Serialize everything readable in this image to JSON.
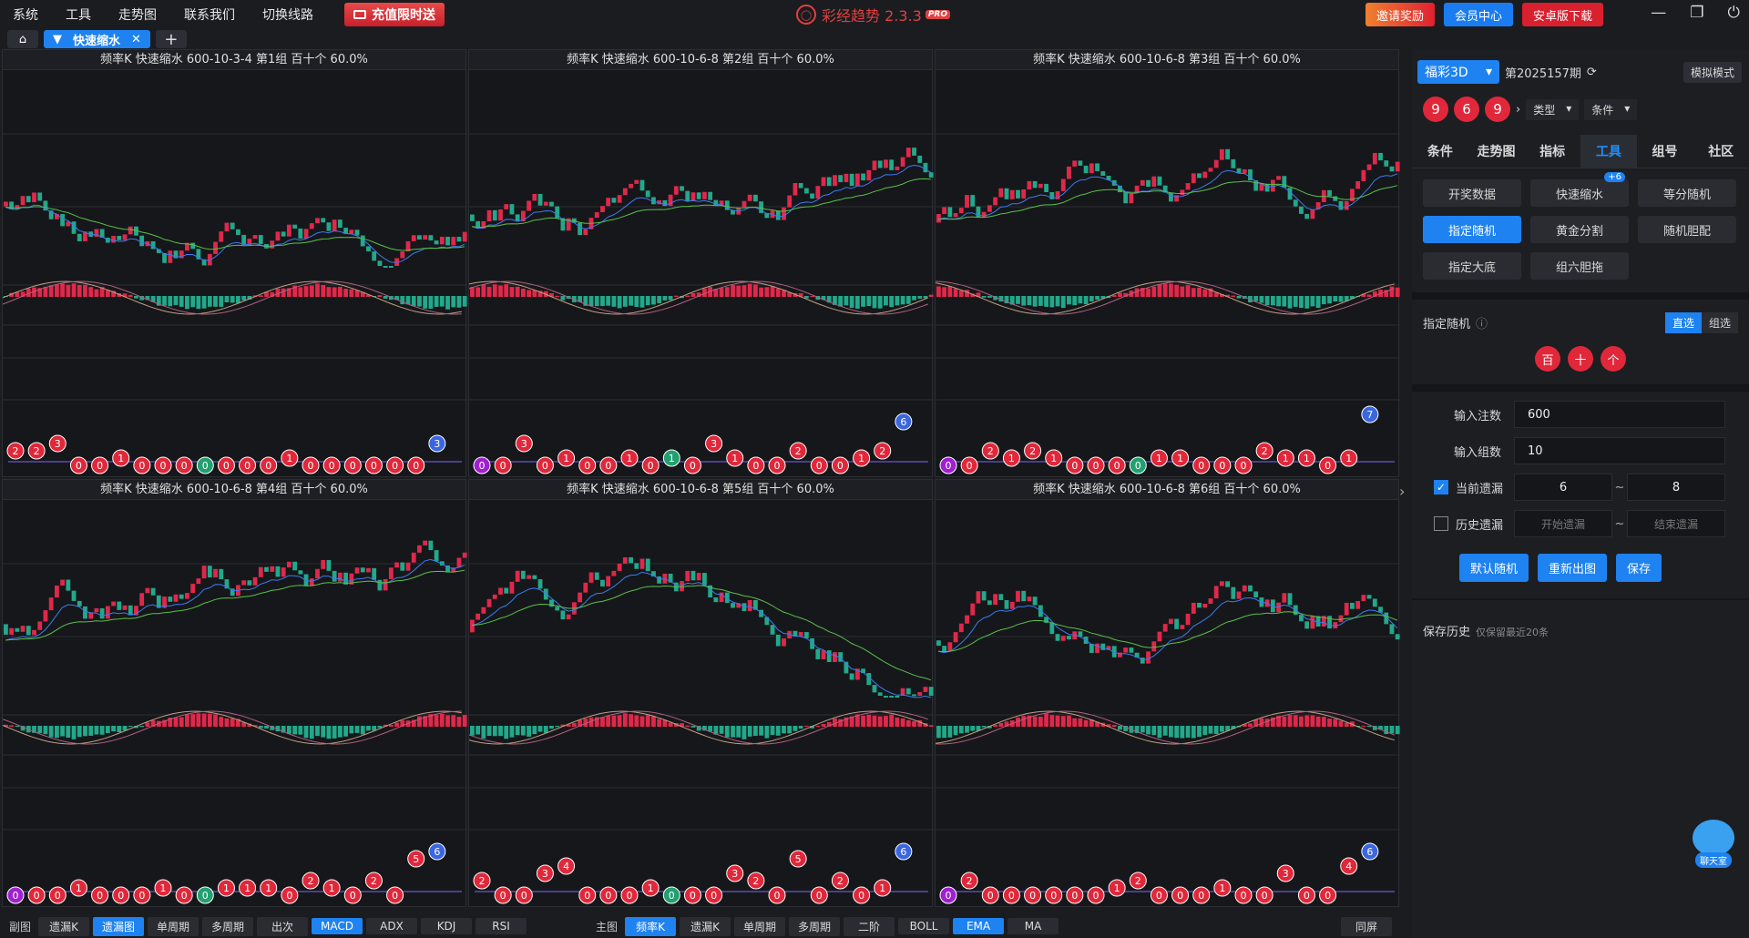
{
  "menu": [
    "系统",
    "工具",
    "走势图",
    "联系我们",
    "切换线路"
  ],
  "promo": "充值限时送",
  "app": {
    "name": "彩经趋势 2.3.3",
    "badge": "PRO"
  },
  "top_buttons": {
    "invite": "邀请奖励",
    "vip": "会员中心",
    "android": "安卓版下载"
  },
  "tab": {
    "label": "快速缩水"
  },
  "panels": [
    {
      "title": "频率K  快速缩水  600-10-3-4 第1组  百十个  60.0%"
    },
    {
      "title": "频率K  快速缩水  600-10-6-8 第2组  百十个  60.0%"
    },
    {
      "title": "频率K  快速缩水  600-10-6-8 第3组  百十个  60.0%"
    },
    {
      "title": "频率K  快速缩水  600-10-6-8 第4组  百十个  60.0%"
    },
    {
      "title": "频率K  快速缩水  600-10-6-8 第5组  百十个  60.0%"
    },
    {
      "title": "频率K  快速缩水  600-10-6-8 第6组  百十个  60.0%"
    }
  ],
  "miss_balls": [
    [
      "2",
      "2",
      "3",
      "0",
      "0",
      "1",
      "0",
      "0",
      "0",
      "0",
      "0",
      "0",
      "0",
      "1",
      "0",
      "0",
      "0",
      "0",
      "0",
      "0",
      "3"
    ],
    [
      "0",
      "0",
      "3",
      "0",
      "1",
      "0",
      "0",
      "1",
      "0",
      "1",
      "0",
      "3",
      "1",
      "0",
      "0",
      "2",
      "0",
      "0",
      "1",
      "2",
      "6"
    ],
    [
      "0",
      "0",
      "2",
      "1",
      "2",
      "1",
      "0",
      "0",
      "0",
      "0",
      "1",
      "1",
      "0",
      "0",
      "0",
      "2",
      "1",
      "1",
      "0",
      "1",
      "7"
    ],
    [
      "0",
      "0",
      "0",
      "1",
      "0",
      "0",
      "0",
      "1",
      "0",
      "0",
      "1",
      "1",
      "1",
      "0",
      "2",
      "1",
      "0",
      "2",
      "0",
      "5",
      "6"
    ],
    [
      "2",
      "0",
      "0",
      "3",
      "4",
      "0",
      "0",
      "0",
      "1",
      "0",
      "0",
      "0",
      "3",
      "2",
      "0",
      "5",
      "0",
      "2",
      "0",
      "1",
      "6"
    ],
    [
      "0",
      "2",
      "0",
      "0",
      "0",
      "0",
      "0",
      "0",
      "1",
      "2",
      "0",
      "0",
      "0",
      "1",
      "0",
      "0",
      "3",
      "0",
      "0",
      "4",
      "6"
    ]
  ],
  "bottom": {
    "sub_label": "副图",
    "sub": [
      "遗漏K",
      "遗漏图",
      "单周期",
      "多周期",
      "出次",
      "MACD",
      "ADX",
      "KDJ",
      "RSI"
    ],
    "main_label": "主图",
    "main": [
      "频率K",
      "遗漏K",
      "单周期",
      "多周期",
      "二阶",
      "BOLL",
      "EMA",
      "MA"
    ],
    "same_screen": "同屏"
  },
  "side": {
    "lottery": "福彩3D",
    "period": "第2025157期",
    "sim": "模拟模式",
    "balls": [
      "9",
      "6",
      "9"
    ],
    "type_drop": "类型",
    "cond_drop": "条件",
    "tabs": [
      "条件",
      "走势图",
      "指标",
      "工具",
      "组号",
      "社区"
    ],
    "tools": [
      "开奖数据",
      "快速缩水",
      "等分随机",
      "指定随机",
      "黄金分割",
      "随机胆配",
      "指定大底",
      "组六胆拖"
    ],
    "tool_badge": "+6",
    "section": "指定随机",
    "seg_direct": "直选",
    "seg_group": "组选",
    "positions": [
      "百",
      "十",
      "个"
    ],
    "form": {
      "bets_label": "输入注数",
      "bets_value": "600",
      "groups_label": "输入组数",
      "groups_value": "10",
      "current_label": "当前遗漏",
      "current_from": "6",
      "current_to": "8",
      "hist_label": "历史遗漏",
      "hist_from_ph": "开始遗漏",
      "hist_to_ph": "结束遗漏"
    },
    "actions": [
      "默认随机",
      "重新出图",
      "保存"
    ],
    "history": "保存历史",
    "history_note": "仅保留最近20条",
    "chat": "聊天室"
  }
}
